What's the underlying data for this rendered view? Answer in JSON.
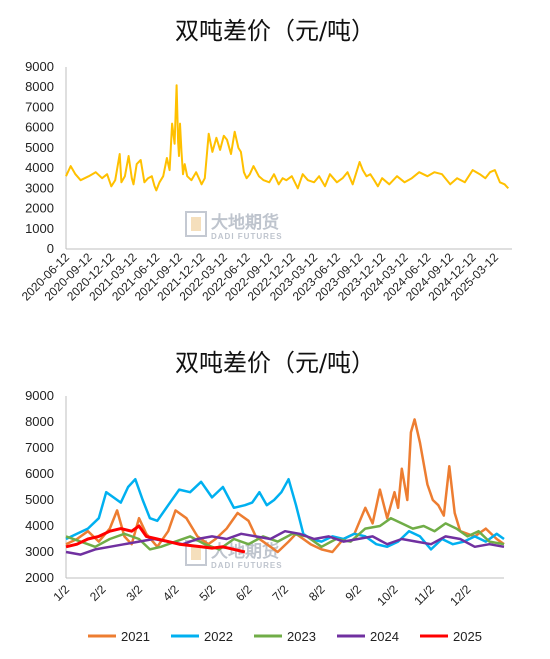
{
  "watermark": {
    "brand_cn": "大地期货",
    "brand_en": "DADI FUTURES"
  },
  "colors": {
    "c2021": "#ED7D31",
    "c2022": "#00B0F0",
    "c2023": "#70AD47",
    "c2024": "#7030A0",
    "c2025": "#FF0000",
    "single": "#FFC000"
  },
  "chart_data": [
    {
      "type": "line",
      "title": "双吨差价（元/吨）",
      "ylim": [
        0,
        9000
      ],
      "yticks": [
        "0",
        "1000",
        "2000",
        "3000",
        "4000",
        "5000",
        "6000",
        "7000",
        "8000",
        "9000"
      ],
      "xticks": [
        "2020-06-12",
        "2020-09-12",
        "2020-12-12",
        "2021-03-12",
        "2021-06-12",
        "2021-09-12",
        "2021-12-12",
        "2022-03-12",
        "2022-06-12",
        "2022-09-12",
        "2022-12-12",
        "2023-03-12",
        "2023-06-12",
        "2023-09-12",
        "2023-12-12",
        "2024-03-12",
        "2024-06-12",
        "2024-09-12",
        "2024-12-12",
        "2025-03-12"
      ],
      "grid": false,
      "series": [
        {
          "color": "#FFC000",
          "x": [
            "2020-06-12",
            "2020-07-01",
            "2020-07-20",
            "2020-08-10",
            "2020-09-12",
            "2020-10-10",
            "2020-11-05",
            "2020-11-25",
            "2020-12-12",
            "2020-12-28",
            "2021-01-15",
            "2021-01-22",
            "2021-02-05",
            "2021-02-20",
            "2021-03-05",
            "2021-03-12",
            "2021-03-25",
            "2021-04-10",
            "2021-04-25",
            "2021-05-10",
            "2021-05-25",
            "2021-06-05",
            "2021-06-12",
            "2021-06-25",
            "2021-07-10",
            "2021-07-25",
            "2021-08-05",
            "2021-08-15",
            "2021-08-25",
            "2021-09-02",
            "2021-09-08",
            "2021-09-12",
            "2021-09-16",
            "2021-09-22",
            "2021-09-28",
            "2021-10-05",
            "2021-10-15",
            "2021-11-01",
            "2021-11-20",
            "2021-12-05",
            "2021-12-12",
            "2021-12-25",
            "2022-01-10",
            "2022-01-25",
            "2022-02-10",
            "2022-02-25",
            "2022-03-12",
            "2022-03-25",
            "2022-04-10",
            "2022-04-25",
            "2022-05-10",
            "2022-05-20",
            "2022-06-01",
            "2022-06-12",
            "2022-06-25",
            "2022-07-10",
            "2022-08-01",
            "2022-08-20",
            "2022-09-12",
            "2022-10-01",
            "2022-10-20",
            "2022-11-05",
            "2022-11-20",
            "2022-12-12",
            "2023-01-05",
            "2023-01-25",
            "2023-02-15",
            "2023-03-12",
            "2023-04-01",
            "2023-04-25",
            "2023-05-15",
            "2023-06-12",
            "2023-07-05",
            "2023-07-25",
            "2023-08-15",
            "2023-09-12",
            "2023-09-25",
            "2023-10-10",
            "2023-10-25",
            "2023-11-10",
            "2023-11-25",
            "2023-12-12",
            "2024-01-10",
            "2024-02-10",
            "2024-03-12",
            "2024-04-10",
            "2024-05-10",
            "2024-06-12",
            "2024-07-10",
            "2024-08-10",
            "2024-09-12",
            "2024-10-10",
            "2024-11-10",
            "2024-12-12",
            "2025-01-10",
            "2025-02-01",
            "2025-02-20",
            "2025-03-12",
            "2025-04-01",
            "2025-04-20",
            "2025-05-05"
          ],
          "values": [
            3600,
            4100,
            3700,
            3400,
            3600,
            3800,
            3500,
            3700,
            3100,
            3400,
            4700,
            3300,
            3600,
            4600,
            3500,
            3200,
            4200,
            4400,
            3300,
            3500,
            3600,
            3100,
            2900,
            3300,
            3600,
            4500,
            3900,
            6200,
            5200,
            8100,
            5300,
            4600,
            6200,
            4800,
            3700,
            4200,
            3600,
            3400,
            3800,
            3400,
            3200,
            3500,
            5700,
            4800,
            5500,
            4900,
            5600,
            5400,
            4700,
            5800,
            5000,
            4800,
            3800,
            3500,
            3700,
            4100,
            3600,
            3400,
            3300,
            3700,
            3200,
            3500,
            3400,
            3600,
            3000,
            3700,
            3400,
            3300,
            3600,
            3100,
            3700,
            3300,
            3500,
            3800,
            3200,
            4300,
            3900,
            3600,
            3700,
            3400,
            3100,
            3500,
            3200,
            3600,
            3300,
            3500,
            3800,
            3600,
            3800,
            3700,
            3200,
            3500,
            3300,
            3900,
            3700,
            3500,
            3800,
            3900,
            3300,
            3200,
            3000
          ]
        }
      ]
    },
    {
      "type": "line",
      "title": "双吨差价（元/吨）",
      "ylim": [
        2000,
        9000
      ],
      "yticks": [
        "2000",
        "3000",
        "4000",
        "5000",
        "6000",
        "7000",
        "8000",
        "9000"
      ],
      "xticks": [
        "1/2",
        "2/2",
        "3/2",
        "4/2",
        "5/2",
        "6/2",
        "7/2",
        "8/2",
        "9/2",
        "10/2",
        "11/2",
        "12/2"
      ],
      "grid": false,
      "legend": "bottom",
      "series": [
        {
          "name": "2021",
          "color": "#ED7D31",
          "x": [
            0.0,
            0.3,
            0.6,
            0.9,
            1.2,
            1.4,
            1.6,
            1.8,
            2.0,
            2.2,
            2.5,
            2.8,
            3.0,
            3.3,
            3.6,
            3.9,
            4.1,
            4.4,
            4.7,
            5.0,
            5.2,
            5.5,
            5.8,
            6.1,
            6.3,
            6.5,
            6.7,
            7.0,
            7.3,
            7.6,
            7.9,
            8.2,
            8.4,
            8.6,
            8.8,
            9.0,
            9.1,
            9.2,
            9.35,
            9.45,
            9.55,
            9.7,
            9.9,
            10.05,
            10.2,
            10.35,
            10.5,
            10.65,
            10.8,
            11.0,
            11.2,
            11.5,
            11.8,
            12.0
          ],
          "values": [
            3300,
            3500,
            3800,
            3400,
            3900,
            4600,
            3600,
            3300,
            4300,
            3700,
            3200,
            3800,
            4600,
            4300,
            3600,
            3300,
            3500,
            3900,
            4500,
            4200,
            3600,
            3300,
            3000,
            3400,
            3700,
            3500,
            3300,
            3100,
            3000,
            3500,
            3700,
            4700,
            4100,
            5400,
            4300,
            5300,
            4700,
            6200,
            5000,
            7600,
            8100,
            7200,
            5600,
            5000,
            4800,
            4400,
            6300,
            4500,
            3800,
            3700,
            3600,
            3900,
            3500,
            3300
          ]
        },
        {
          "name": "2022",
          "color": "#00B0F0",
          "x": [
            0.0,
            0.3,
            0.6,
            0.9,
            1.1,
            1.3,
            1.5,
            1.7,
            1.9,
            2.1,
            2.3,
            2.5,
            2.8,
            3.1,
            3.4,
            3.7,
            4.0,
            4.3,
            4.6,
            4.9,
            5.1,
            5.3,
            5.5,
            5.7,
            5.9,
            6.1,
            6.3,
            6.5,
            6.7,
            7.0,
            7.3,
            7.6,
            7.9,
            8.2,
            8.5,
            8.8,
            9.1,
            9.4,
            9.7,
            10.0,
            10.3,
            10.6,
            10.9,
            11.2,
            11.5,
            11.8,
            12.0
          ],
          "values": [
            3500,
            3700,
            3900,
            4300,
            5300,
            5100,
            4900,
            5500,
            5800,
            5000,
            4300,
            4200,
            4800,
            5400,
            5300,
            5700,
            5100,
            5500,
            4700,
            4800,
            4900,
            5300,
            4800,
            5000,
            5300,
            5800,
            4800,
            3700,
            3500,
            3400,
            3600,
            3500,
            3700,
            3600,
            3300,
            3200,
            3400,
            3800,
            3600,
            3100,
            3500,
            3300,
            3400,
            3600,
            3400,
            3700,
            3500
          ]
        },
        {
          "name": "2023",
          "color": "#70AD47",
          "x": [
            0.0,
            0.4,
            0.8,
            1.2,
            1.6,
            2.0,
            2.3,
            2.6,
            3.0,
            3.4,
            3.8,
            4.2,
            4.6,
            5.0,
            5.4,
            5.8,
            6.2,
            6.6,
            7.0,
            7.4,
            7.8,
            8.2,
            8.6,
            8.9,
            9.2,
            9.5,
            9.8,
            10.1,
            10.4,
            10.7,
            11.0,
            11.3,
            11.6,
            12.0
          ],
          "values": [
            3600,
            3400,
            3200,
            3500,
            3700,
            3500,
            3100,
            3200,
            3400,
            3600,
            3300,
            3100,
            3500,
            3300,
            3600,
            3400,
            3700,
            3600,
            3200,
            3500,
            3400,
            3900,
            4000,
            4300,
            4100,
            3900,
            4000,
            3800,
            4100,
            3900,
            3600,
            3800,
            3400,
            3300
          ]
        },
        {
          "name": "2024",
          "color": "#7030A0",
          "x": [
            0.0,
            0.4,
            0.8,
            1.2,
            1.6,
            2.0,
            2.4,
            2.8,
            3.2,
            3.6,
            4.0,
            4.4,
            4.8,
            5.2,
            5.6,
            6.0,
            6.4,
            6.8,
            7.2,
            7.6,
            8.0,
            8.4,
            8.8,
            9.2,
            9.6,
            10.0,
            10.4,
            10.8,
            11.2,
            11.6,
            12.0
          ],
          "values": [
            3000,
            2900,
            3100,
            3200,
            3300,
            3400,
            3500,
            3400,
            3300,
            3500,
            3600,
            3500,
            3700,
            3600,
            3500,
            3800,
            3700,
            3500,
            3600,
            3400,
            3500,
            3600,
            3300,
            3500,
            3400,
            3300,
            3600,
            3500,
            3200,
            3300,
            3200
          ]
        },
        {
          "name": "2025",
          "color": "#FF0000",
          "x": [
            0.0,
            0.3,
            0.6,
            0.9,
            1.2,
            1.5,
            1.8,
            2.0,
            2.2,
            2.5,
            2.8,
            3.1,
            3.4,
            3.7,
            4.0,
            4.3,
            4.6,
            4.9
          ],
          "values": [
            3200,
            3300,
            3500,
            3600,
            3800,
            3900,
            3800,
            4000,
            3600,
            3500,
            3400,
            3300,
            3250,
            3200,
            3150,
            3200,
            3100,
            3000
          ]
        }
      ]
    }
  ]
}
